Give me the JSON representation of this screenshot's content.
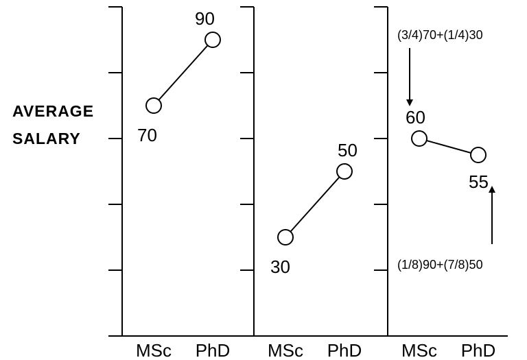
{
  "ylabel_line1": "AVERAGE",
  "ylabel_line2": "SALARY",
  "chart_data": [
    {
      "type": "line",
      "categories": [
        "MSc",
        "PhD"
      ],
      "series": [
        {
          "values": [
            70,
            90
          ]
        }
      ],
      "data_labels": [
        "70",
        "90"
      ],
      "ylim": [
        0,
        100
      ],
      "y_tick_step": 20
    },
    {
      "type": "line",
      "categories": [
        "MSc",
        "PhD"
      ],
      "series": [
        {
          "values": [
            30,
            50
          ]
        }
      ],
      "data_labels": [
        "30",
        "50"
      ],
      "ylim": [
        0,
        100
      ],
      "y_tick_step": 20
    },
    {
      "type": "line",
      "categories": [
        "MSc",
        "PhD"
      ],
      "series": [
        {
          "values": [
            60,
            55
          ]
        }
      ],
      "data_labels": [
        "60",
        "55"
      ],
      "ylim": [
        0,
        100
      ],
      "y_tick_step": 20,
      "annotations": [
        "(3/4)70+(1/4)30",
        "(1/8)90+(7/8)50"
      ]
    }
  ]
}
